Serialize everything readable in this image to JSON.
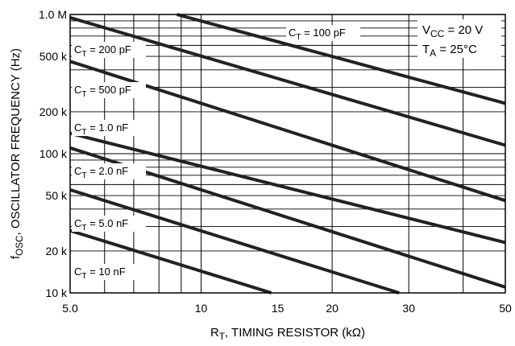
{
  "chart_data": {
    "type": "line",
    "title": "",
    "xlabel": "R_T, TIMING RESISTOR (kΩ)",
    "ylabel": "f_OSC, OSCILLATOR FREQUENCY (Hz)",
    "x_scale": "log",
    "y_scale": "log",
    "xlim": [
      5,
      50
    ],
    "ylim": [
      10000,
      1000000
    ],
    "x_ticks": [
      5,
      10,
      15,
      20,
      30,
      50
    ],
    "x_tick_labels": [
      "5.0",
      "10",
      "15",
      "20",
      "30",
      "50"
    ],
    "y_ticks": [
      10000,
      20000,
      50000,
      100000,
      200000,
      500000,
      1000000
    ],
    "y_tick_labels": [
      "10 k",
      "20 k",
      "50 k",
      "100 k",
      "200 k",
      "500 k",
      "1.0 M"
    ],
    "grid": true,
    "conditions": [
      "V_CC = 20 V",
      "T_A = 25°C"
    ],
    "series": [
      {
        "name": "C_T = 100 pF",
        "x": [
          8.8,
          50
        ],
        "y": [
          1000000,
          230000
        ]
      },
      {
        "name": "C_T = 200 pF",
        "x": [
          5,
          50
        ],
        "y": [
          950000,
          115000
        ]
      },
      {
        "name": "C_T = 500 pF",
        "x": [
          5,
          50
        ],
        "y": [
          460000,
          46000
        ]
      },
      {
        "name": "C_T = 1.0 nF",
        "x": [
          5,
          50
        ],
        "y": [
          140000,
          23000
        ]
      },
      {
        "name": "C_T = 2.0 nF",
        "x": [
          5,
          50
        ],
        "y": [
          110000,
          11000
        ]
      },
      {
        "name": "C_T = 5.0 nF",
        "x": [
          5,
          28.5
        ],
        "y": [
          55000,
          10000
        ]
      },
      {
        "name": "C_T = 10 nF",
        "x": [
          5,
          14.5
        ],
        "y": [
          28000,
          10000
        ]
      }
    ]
  }
}
